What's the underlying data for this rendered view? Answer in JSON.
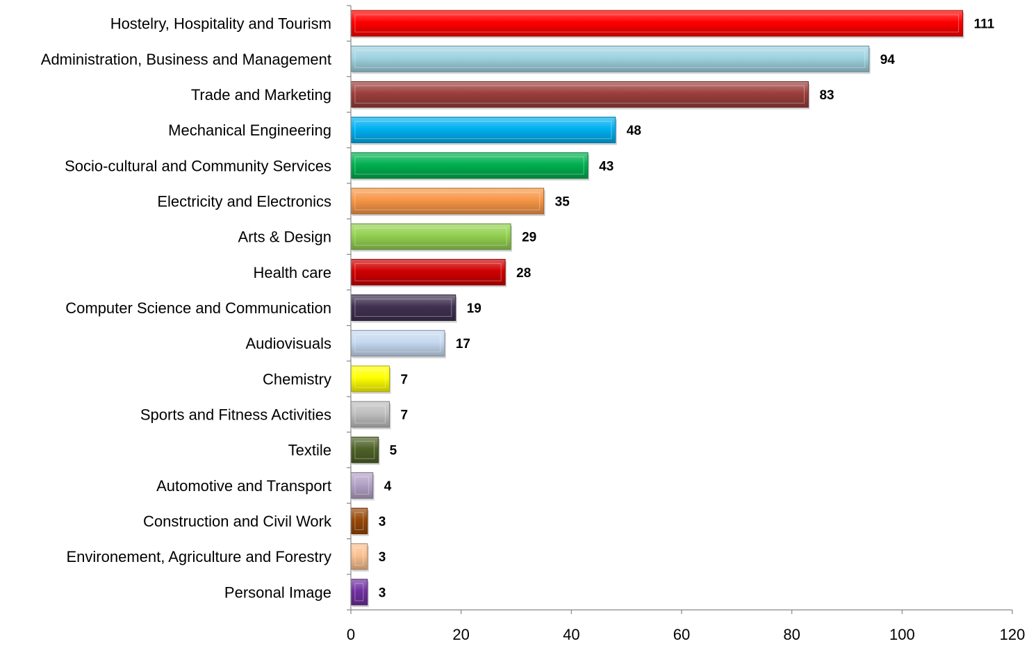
{
  "chart_data": {
    "type": "bar",
    "orientation": "horizontal",
    "title": "",
    "xlabel": "",
    "ylabel": "",
    "xlim": [
      0,
      120
    ],
    "xticks": [
      0,
      20,
      40,
      60,
      80,
      100,
      120
    ],
    "grid": false,
    "legend": "none",
    "categories": [
      "Hostelry, Hospitality and Tourism",
      "Administration, Business and Management",
      "Trade and Marketing",
      "Mechanical Engineering",
      "Socio-cultural and Community Services",
      "Electricity and Electronics",
      "Arts & Design",
      "Health care",
      "Computer Science and Communication",
      "Audiovisuals",
      "Chemistry",
      "Sports and Fitness Activities",
      "Textile",
      "Automotive and Transport",
      "Construction and Civil Work",
      "Environement, Agriculture and Forestry",
      "Personal Image"
    ],
    "values": [
      111,
      94,
      83,
      48,
      43,
      35,
      29,
      28,
      19,
      17,
      7,
      7,
      5,
      4,
      3,
      3,
      3
    ],
    "colors": [
      "#ff0000",
      "#9fd3e0",
      "#9b3f3c",
      "#00b0f0",
      "#00b050",
      "#f79646",
      "#92d050",
      "#d00000",
      "#403151",
      "#c6d9f1",
      "#ffff00",
      "#bfbfbf",
      "#4f6228",
      "#b3a2c7",
      "#974706",
      "#fac090",
      "#7030a0"
    ]
  }
}
